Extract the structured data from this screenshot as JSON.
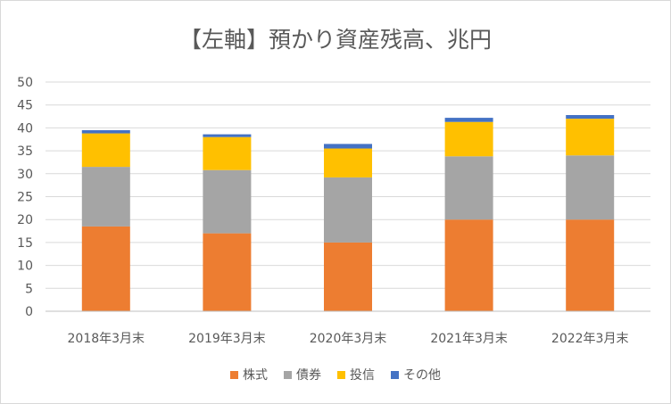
{
  "chart_data": {
    "type": "bar",
    "stacked": true,
    "title": "【左軸】預かり資産残高、兆円",
    "xlabel": "",
    "ylabel": "",
    "ylim": [
      0,
      50
    ],
    "yticks": [
      0,
      5,
      10,
      15,
      20,
      25,
      30,
      35,
      40,
      45,
      50
    ],
    "categories": [
      "2018年3月末",
      "2019年3月末",
      "2020年3月末",
      "2021年3月末",
      "2022年3月末"
    ],
    "series": [
      {
        "name": "株式",
        "color": "#ED7D31",
        "values": [
          18.5,
          17.0,
          15.0,
          20.0,
          20.0
        ]
      },
      {
        "name": "債券",
        "color": "#A5A5A5",
        "values": [
          13.0,
          13.8,
          14.2,
          13.8,
          14.0
        ]
      },
      {
        "name": "投信",
        "color": "#FFC000",
        "values": [
          7.3,
          7.2,
          6.3,
          7.5,
          8.0
        ]
      },
      {
        "name": "その他",
        "color": "#4472C4",
        "values": [
          0.7,
          0.6,
          1.0,
          0.9,
          0.8
        ]
      }
    ],
    "grid": true,
    "legend_position": "bottom"
  }
}
